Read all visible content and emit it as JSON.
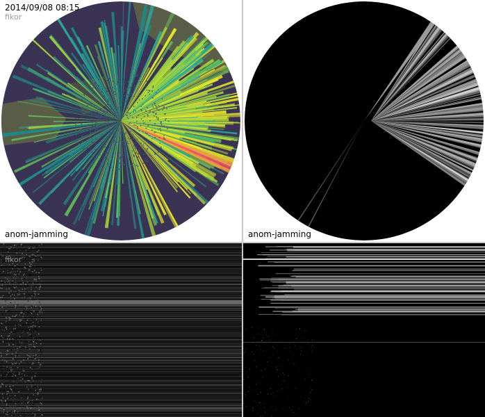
{
  "panels": {
    "top_left": {
      "timestamp": "2014/09/08 08:15",
      "radar_name": "fikor",
      "label": "anom-jamming"
    },
    "top_right": {
      "label": "anom-jamming"
    },
    "bottom_left": {
      "radar_name": "fikor"
    }
  },
  "colors": {
    "background_disk": "#3b3354",
    "land": "#5a5e48",
    "rays": [
      "#1f8a8a",
      "#2aa79a",
      "#5fbf5a",
      "#a6d63a",
      "#e5e52a",
      "#f2a23a",
      "#e84a6a"
    ],
    "grayscale_ray": "#9a9a9a"
  }
}
